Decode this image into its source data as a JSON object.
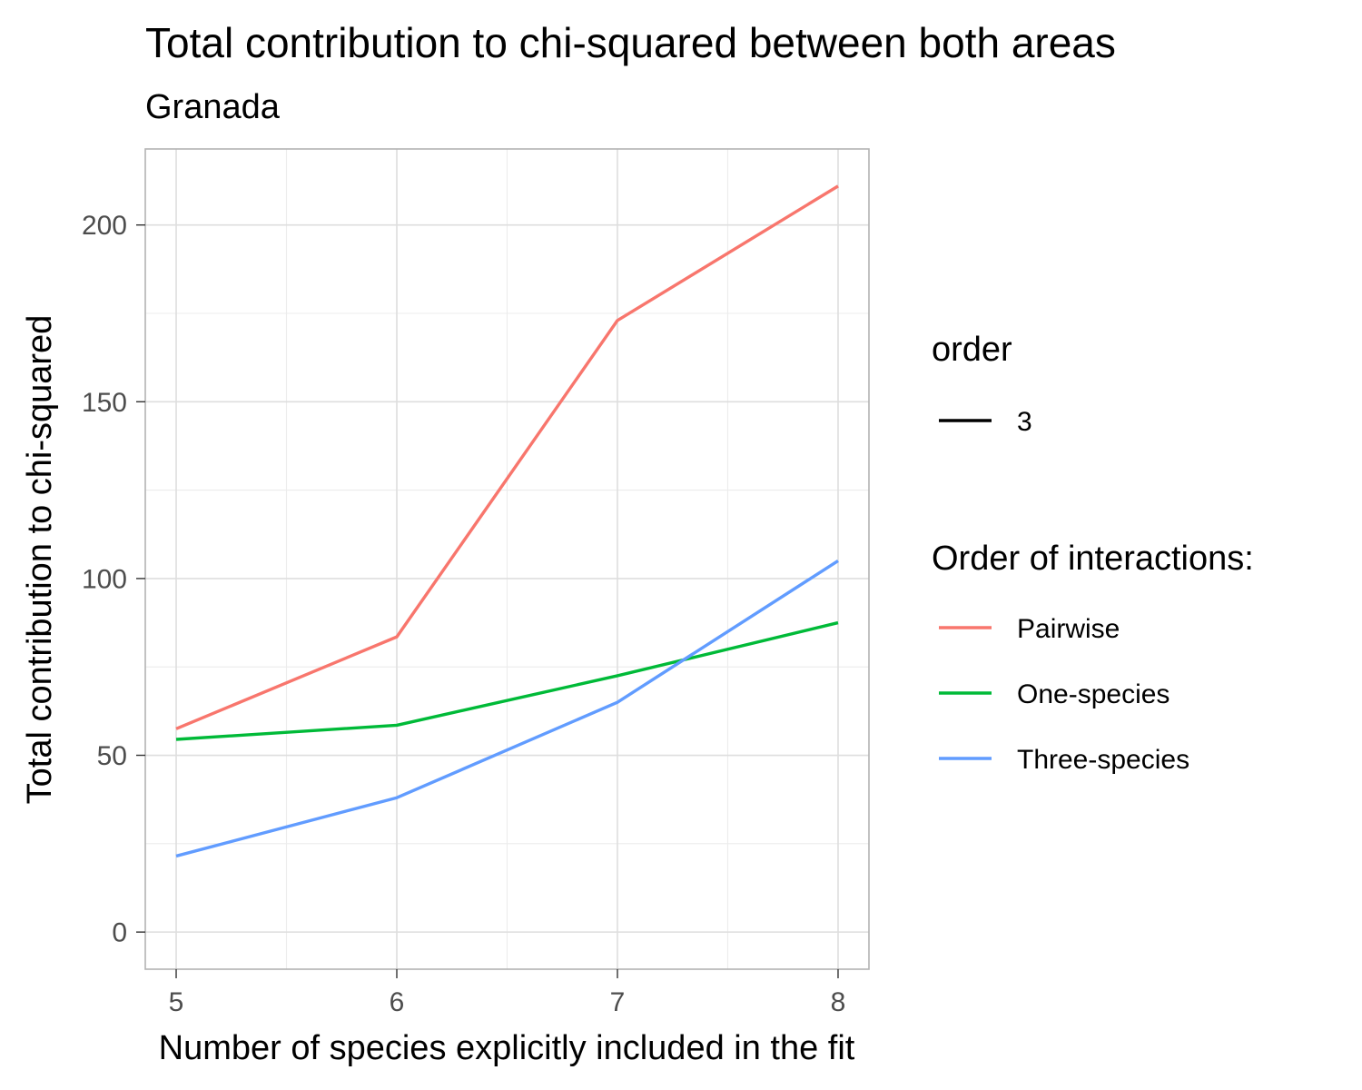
{
  "chart_data": {
    "type": "line",
    "title": "Total contribution to chi-squared between both areas",
    "subtitle": "Granada",
    "xlabel": "Number of species explicitly included in the fit",
    "ylabel": "Total contribution to chi-squared",
    "x": [
      5,
      6,
      7,
      8
    ],
    "xlim": [
      4.86,
      8.14
    ],
    "ylim": [
      -10.5,
      221.5
    ],
    "x_ticks": [
      5,
      6,
      7,
      8
    ],
    "y_ticks": [
      0,
      50,
      100,
      150,
      200
    ],
    "x_minor": [
      5.5,
      6.5,
      7.5
    ],
    "y_minor": [
      25,
      75,
      125,
      175
    ],
    "grid": true,
    "series": [
      {
        "name": "Pairwise",
        "color": "#F8766D",
        "values": [
          57.5,
          83.5,
          173,
          211
        ]
      },
      {
        "name": "One-species",
        "color": "#00BA38",
        "values": [
          54.5,
          58.5,
          72.5,
          87.5
        ]
      },
      {
        "name": "Three-species",
        "color": "#619CFF",
        "values": [
          21.5,
          38,
          65,
          105
        ]
      }
    ],
    "legend": {
      "placement": "right",
      "order_title": "order",
      "order_entries": [
        {
          "label": "3",
          "color": "#000000"
        }
      ],
      "interaction_title": "Order of interactions:"
    }
  }
}
